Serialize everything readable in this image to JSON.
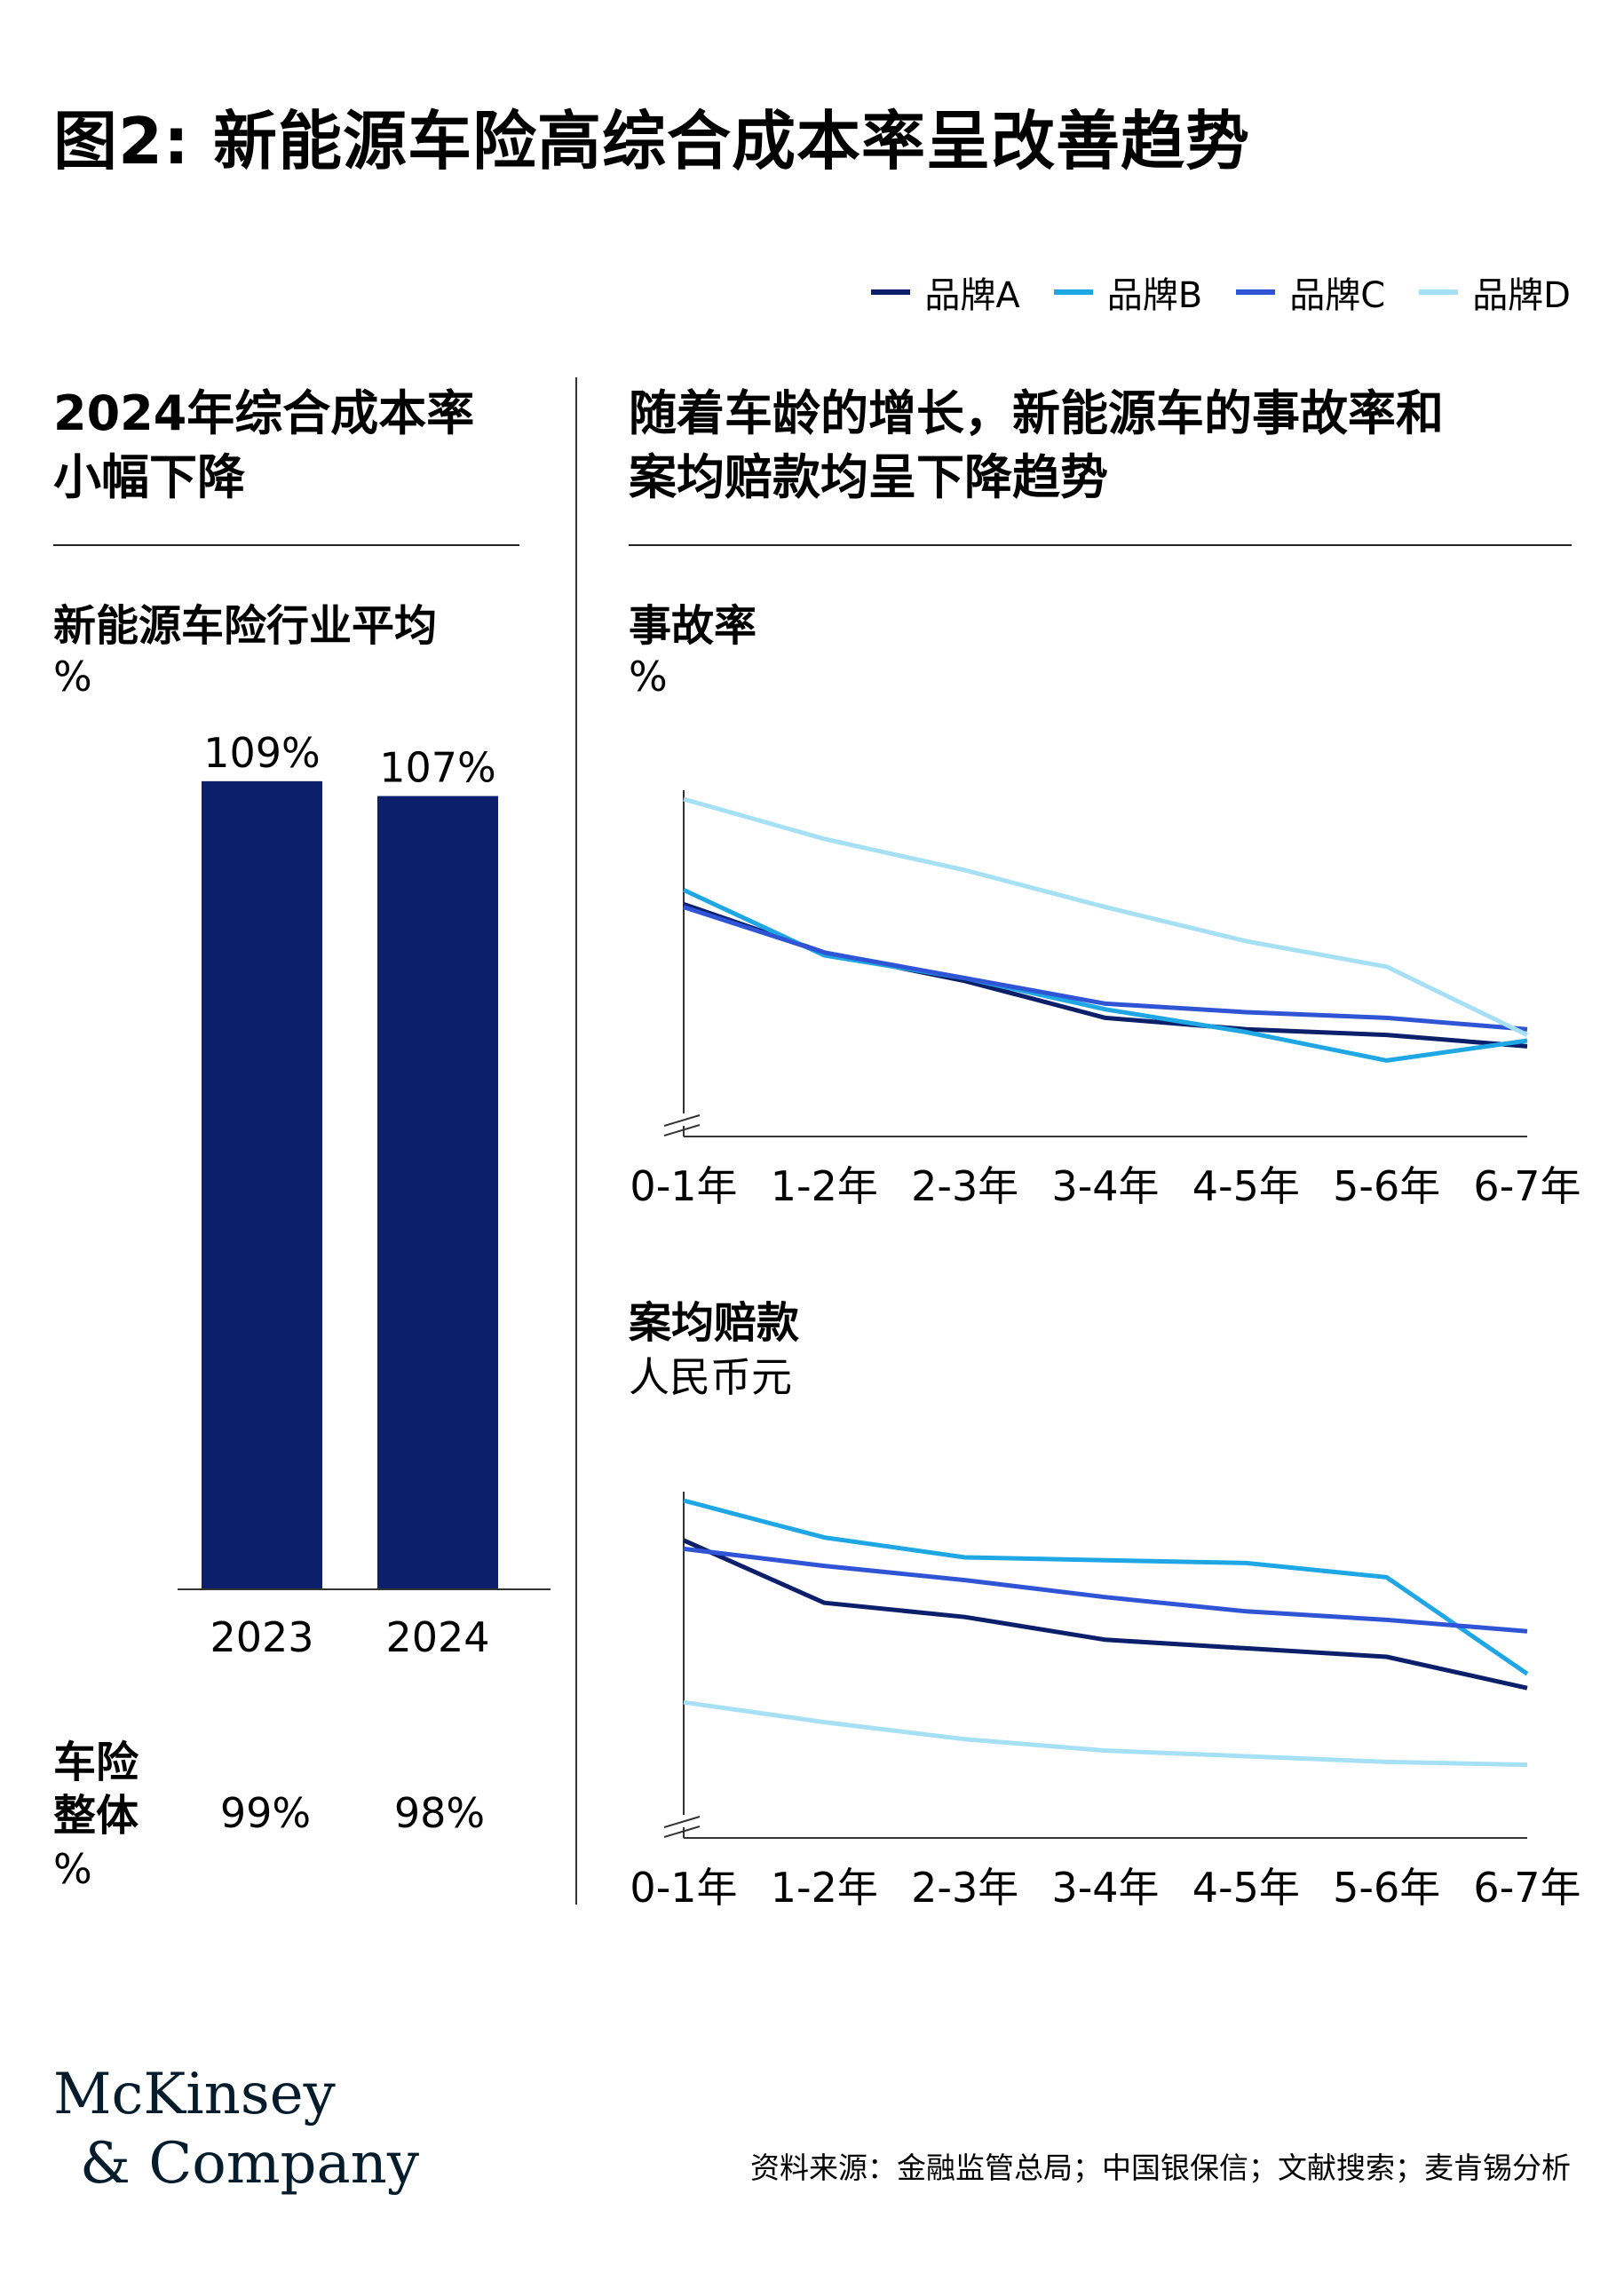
{
  "title": "图2: 新能源车险高综合成本率呈改善趋势",
  "legend": [
    {
      "name": "品牌A",
      "color": "#0b1f6b"
    },
    {
      "name": "品牌B",
      "color": "#1ea7e4"
    },
    {
      "name": "品牌C",
      "color": "#2f54d6"
    },
    {
      "name": "品牌D",
      "color": "#a6e0f5"
    }
  ],
  "left": {
    "heading_line1": "2024年综合成本率",
    "heading_line2": "小幅下降",
    "subheading": "新能源车险行业平均",
    "unit": "%",
    "overall_label_line1": "车险",
    "overall_label_line2": "整体",
    "overall_unit": "%",
    "overall_values": [
      "99%",
      "98%"
    ]
  },
  "right": {
    "heading_line1": "随着车龄的增长，新能源车的事故率和",
    "heading_line2": "案均赔款均呈下降趋势",
    "accident": {
      "subheading": "事故率",
      "unit": "%"
    },
    "claim": {
      "subheading": "案均赔款",
      "unit": "人民币元"
    }
  },
  "chart_data": [
    {
      "type": "bar",
      "categories": [
        "2023",
        "2024"
      ],
      "values": [
        109,
        107
      ],
      "data_labels": [
        "109%",
        "107%"
      ],
      "ylabel": "%",
      "color": "#0b1f6b"
    },
    {
      "type": "line",
      "title": "事故率",
      "ylabel": "%",
      "categories": [
        "0-1年",
        "1-2年",
        "2-3年",
        "3-4年",
        "4-5年",
        "5-6年",
        "6-7年"
      ],
      "series": [
        {
          "name": "品牌A",
          "values": [
            63,
            46,
            36,
            23,
            19,
            17,
            13
          ]
        },
        {
          "name": "品牌B",
          "values": [
            68,
            45,
            37,
            26,
            18,
            8,
            15
          ]
        },
        {
          "name": "品牌C",
          "values": [
            62,
            46,
            37,
            28,
            25,
            23,
            19
          ]
        },
        {
          "name": "品牌D",
          "values": [
            100,
            86,
            75,
            62,
            50,
            41,
            17
          ]
        }
      ],
      "axis_break": true,
      "ylim": [
        0,
        100
      ]
    },
    {
      "type": "line",
      "title": "案均赔款",
      "ylabel": "人民币元",
      "categories": [
        "0-1年",
        "1-2年",
        "2-3年",
        "3-4年",
        "4-5年",
        "5-6年",
        "6-7年"
      ],
      "series": [
        {
          "name": "品牌A",
          "values": [
            86,
            64,
            59,
            51,
            48,
            45,
            34
          ]
        },
        {
          "name": "品牌B",
          "values": [
            100,
            87,
            80,
            79,
            78,
            73,
            39
          ]
        },
        {
          "name": "品牌C",
          "values": [
            83,
            77,
            72,
            66,
            61,
            58,
            54
          ]
        },
        {
          "name": "品牌D",
          "values": [
            29,
            22,
            16,
            12,
            10,
            8,
            7
          ]
        }
      ],
      "axis_break": true,
      "ylim": [
        0,
        100
      ]
    }
  ],
  "footer": {
    "logo_line1": "McKinsey",
    "logo_line2": "& Company",
    "source": "资料来源：金融监管总局；中国银保信；文献搜索；麦肯锡分析"
  }
}
